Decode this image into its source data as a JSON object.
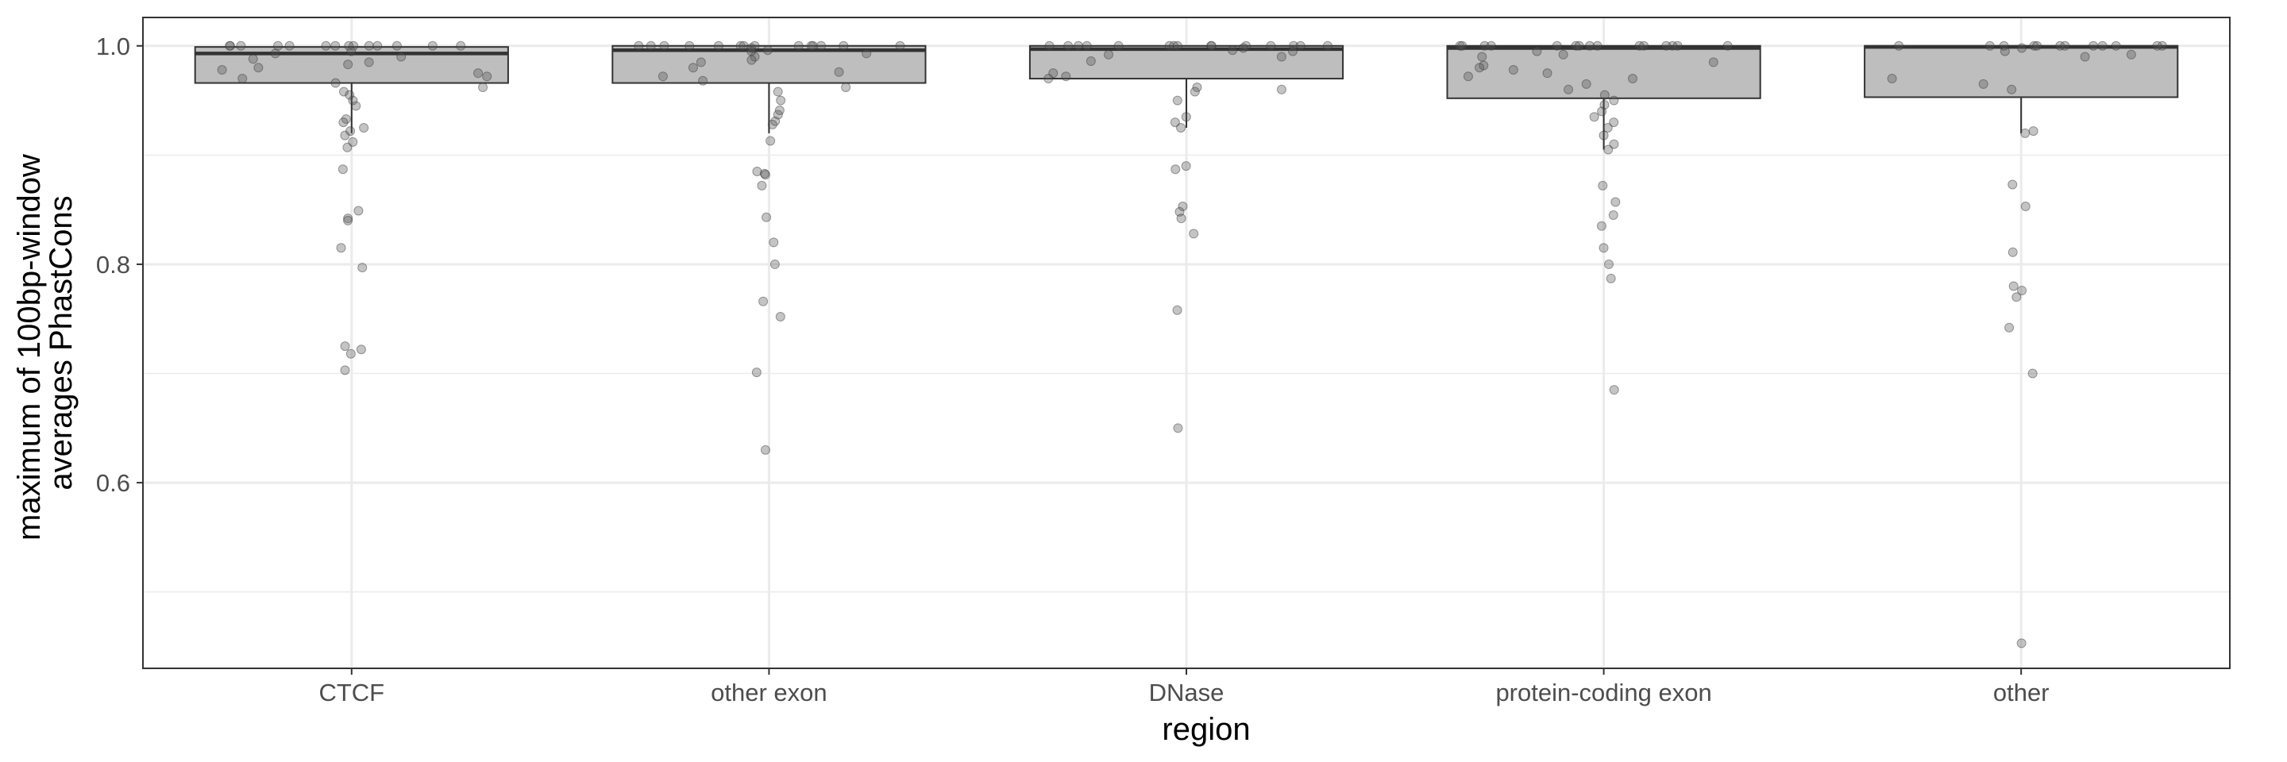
{
  "chart_data": {
    "type": "box",
    "title": "",
    "xlabel": "region",
    "ylabel": [
      "maximum of 100bp-window",
      "averages PhastCons"
    ],
    "categories": [
      "CTCF",
      "other exon",
      "DNase",
      "protein-coding exon",
      "other"
    ],
    "ylim": [
      0.43,
      1.026
    ],
    "yticks": [
      0.6,
      0.8,
      1.0
    ],
    "ytick_labels": [
      "0.6",
      "0.8",
      "1.0"
    ],
    "grid": true,
    "legend": "none",
    "box_color": "#bebebe",
    "point_color": "#555555",
    "boxes": [
      {
        "category": "CTCF",
        "min": 0.92,
        "q1": 0.966,
        "median": 0.993,
        "q3": 0.999,
        "max": 1.0
      },
      {
        "category": "other exon",
        "min": 0.92,
        "q1": 0.966,
        "median": 0.996,
        "q3": 1.0,
        "max": 1.0
      },
      {
        "category": "DNase",
        "min": 0.925,
        "q1": 0.97,
        "median": 0.997,
        "q3": 1.0,
        "max": 1.0
      },
      {
        "category": "protein-coding exon",
        "min": 0.905,
        "q1": 0.952,
        "median": 0.998,
        "q3": 1.0,
        "max": 1.0
      },
      {
        "category": "other",
        "min": 0.92,
        "q1": 0.953,
        "median": 0.999,
        "q3": 1.0,
        "max": 1.0
      }
    ],
    "points": [
      [
        1.0,
        1.0,
        1.0,
        1.0,
        1.0,
        1.0,
        1.0,
        1.0,
        1.0,
        1.0,
        1.0,
        1.0,
        1.0,
        1.0,
        0.995,
        0.993,
        0.99,
        0.988,
        0.985,
        0.983,
        0.98,
        0.978,
        0.975,
        0.972,
        0.97,
        0.966,
        0.962,
        0.958,
        0.955,
        0.95,
        0.945,
        0.933,
        0.93,
        0.925,
        0.922,
        0.918,
        0.912,
        0.907,
        0.887,
        0.849,
        0.842,
        0.84,
        0.815,
        0.797,
        0.725,
        0.722,
        0.718,
        0.703
      ],
      [
        1.0,
        1.0,
        1.0,
        1.0,
        1.0,
        1.0,
        1.0,
        1.0,
        1.0,
        1.0,
        1.0,
        1.0,
        1.0,
        1.0,
        0.998,
        0.996,
        0.995,
        0.993,
        0.99,
        0.987,
        0.985,
        0.98,
        0.976,
        0.972,
        0.968,
        0.962,
        0.958,
        0.95,
        0.941,
        0.937,
        0.931,
        0.928,
        0.913,
        0.885,
        0.883,
        0.882,
        0.872,
        0.843,
        0.82,
        0.8,
        0.766,
        0.752,
        0.701,
        0.63
      ],
      [
        1.0,
        1.0,
        1.0,
        1.0,
        1.0,
        1.0,
        1.0,
        1.0,
        1.0,
        1.0,
        1.0,
        1.0,
        1.0,
        1.0,
        1.0,
        0.998,
        0.996,
        0.995,
        0.992,
        0.99,
        0.986,
        0.975,
        0.972,
        0.97,
        0.962,
        0.96,
        0.958,
        0.95,
        0.935,
        0.93,
        0.925,
        0.89,
        0.887,
        0.853,
        0.848,
        0.842,
        0.828,
        0.758,
        0.65
      ],
      [
        1.0,
        1.0,
        1.0,
        1.0,
        1.0,
        1.0,
        1.0,
        1.0,
        1.0,
        1.0,
        1.0,
        1.0,
        1.0,
        1.0,
        1.0,
        0.995,
        0.992,
        0.99,
        0.985,
        0.982,
        0.98,
        0.978,
        0.975,
        0.972,
        0.97,
        0.965,
        0.96,
        0.955,
        0.95,
        0.946,
        0.94,
        0.935,
        0.93,
        0.925,
        0.918,
        0.91,
        0.905,
        0.872,
        0.857,
        0.845,
        0.835,
        0.815,
        0.8,
        0.787,
        0.685
      ],
      [
        1.0,
        1.0,
        1.0,
        1.0,
        1.0,
        1.0,
        1.0,
        1.0,
        1.0,
        1.0,
        1.0,
        1.0,
        0.998,
        0.995,
        0.992,
        0.99,
        0.97,
        0.965,
        0.96,
        0.922,
        0.92,
        0.873,
        0.853,
        0.811,
        0.78,
        0.776,
        0.77,
        0.742,
        0.7,
        0.453
      ]
    ]
  }
}
